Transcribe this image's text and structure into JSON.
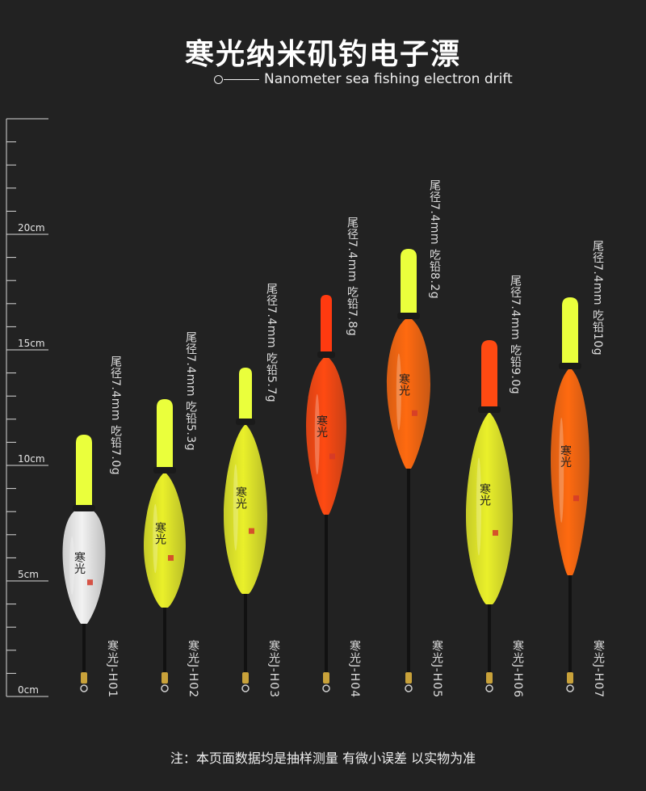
{
  "title": "寒光纳米矶钓电子漂",
  "subtitle": "Nanometer sea fishing electron drift",
  "ruler": {
    "labels": [
      "20cm",
      "15cm",
      "10cm",
      "5cm",
      "0cm"
    ],
    "max_cm": 25
  },
  "brand_mark": "寒光",
  "products": [
    {
      "model": "寒光J-H01",
      "spec": "尾径7.4mm 吃铅7.0g",
      "body_color": "#f2f2f2",
      "tip_color": "#eaff3c"
    },
    {
      "model": "寒光J-H02",
      "spec": "尾径7.4mm 吃铅5.3g",
      "body_color": "#eaf02a",
      "tip_color": "#eaff3c"
    },
    {
      "model": "寒光J-H03",
      "spec": "尾径7.4mm 吃铅5.7g",
      "body_color": "#eaf02a",
      "tip_color": "#eaff3c"
    },
    {
      "model": "寒光J-H04",
      "spec": "尾径7.4mm 吃铅7.8g",
      "body_color": "#ff4a12",
      "tip_color": "#ff3a10"
    },
    {
      "model": "寒光J-H05",
      "spec": "尾径7.4mm 吃铅8.2g",
      "body_color": "#ff6a10",
      "tip_color": "#eaff3c"
    },
    {
      "model": "寒光J-H06",
      "spec": "尾径7.4mm 吃铅9.0g",
      "body_color": "#eaf02a",
      "tip_color": "#ff4a12"
    },
    {
      "model": "寒光J-H07",
      "spec": "尾径7.4mm 吃铅10g",
      "body_color": "#ff6a10",
      "tip_color": "#eaff3c"
    }
  ],
  "footer": "注：本页面数据均是抽样测量 有微小误差 以实物为准"
}
